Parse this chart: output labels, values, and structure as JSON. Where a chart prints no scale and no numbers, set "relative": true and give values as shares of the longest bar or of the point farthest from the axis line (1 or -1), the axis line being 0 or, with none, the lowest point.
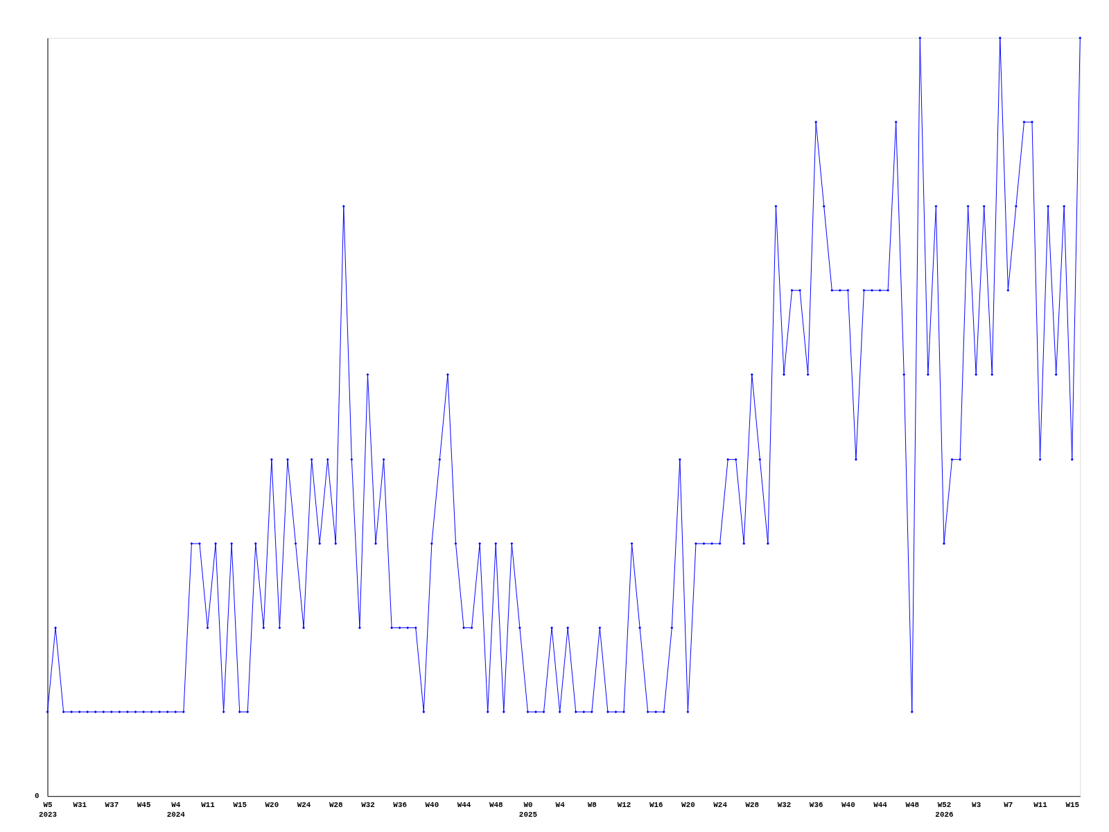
{
  "chart_data": {
    "type": "line",
    "relative": true,
    "color": "#0000ff",
    "marker": "diamond",
    "line_style": "solid",
    "grid": false,
    "annotations": [
      "0"
    ],
    "categories": [
      "W5\n2023",
      null,
      null,
      null,
      "W31",
      null,
      null,
      null,
      "W37",
      null,
      null,
      null,
      "W45",
      null,
      null,
      null,
      "W4\n2024",
      null,
      null,
      null,
      "W11",
      null,
      null,
      null,
      "W15",
      null,
      null,
      null,
      "W20",
      null,
      null,
      null,
      "W24",
      null,
      null,
      null,
      "W28",
      null,
      null,
      null,
      "W32",
      null,
      null,
      null,
      "W36",
      null,
      null,
      null,
      "W40",
      null,
      null,
      null,
      "W44",
      null,
      null,
      null,
      "W48",
      null,
      null,
      null,
      "W0\n2025",
      null,
      null,
      null,
      "W4",
      null,
      null,
      null,
      "W8",
      null,
      null,
      null,
      "W12",
      null,
      null,
      null,
      "W16",
      null,
      null,
      null,
      "W20",
      null,
      null,
      null,
      "W24",
      null,
      null,
      null,
      "W28",
      null,
      null,
      null,
      "W32",
      null,
      null,
      null,
      "W36",
      null,
      null,
      null,
      "W40",
      null,
      null,
      null,
      "W44",
      null,
      null,
      null,
      "W48",
      null,
      null,
      null,
      "W52\n2026",
      null,
      null,
      null,
      "W3",
      null,
      null,
      null,
      "W7",
      null,
      null,
      null,
      "W11",
      null,
      null,
      null,
      "W15",
      null
    ],
    "values": [
      0.111,
      0.222,
      0.111,
      0.111,
      0.111,
      0.111,
      0.111,
      0.111,
      0.111,
      0.111,
      0.111,
      0.111,
      0.111,
      0.111,
      0.111,
      0.111,
      0.111,
      0.111,
      0.333,
      0.333,
      0.222,
      0.333,
      0.111,
      0.333,
      0.111,
      0.111,
      0.333,
      0.222,
      0.444,
      0.222,
      0.444,
      0.333,
      0.222,
      0.444,
      0.333,
      0.444,
      0.333,
      0.778,
      0.444,
      0.222,
      0.556,
      0.333,
      0.444,
      0.222,
      0.222,
      0.222,
      0.222,
      0.111,
      0.333,
      0.444,
      0.556,
      0.333,
      0.222,
      0.222,
      0.333,
      0.111,
      0.333,
      0.111,
      0.333,
      0.222,
      0.111,
      0.111,
      0.111,
      0.222,
      0.111,
      0.222,
      0.111,
      0.111,
      0.111,
      0.222,
      0.111,
      0.111,
      0.111,
      0.333,
      0.222,
      0.111,
      0.111,
      0.111,
      0.222,
      0.444,
      0.111,
      0.333,
      0.333,
      0.333,
      0.333,
      0.444,
      0.444,
      0.333,
      0.556,
      0.444,
      0.333,
      0.778,
      0.556,
      0.667,
      0.667,
      0.556,
      0.889,
      0.778,
      0.667,
      0.667,
      0.667,
      0.444,
      0.667,
      0.667,
      0.667,
      0.667,
      0.889,
      0.556,
      0.111,
      1,
      0.556,
      0.778,
      0.333,
      0.444,
      0.444,
      0.778,
      0.556,
      0.778,
      0.556,
      1,
      0.667,
      0.778,
      0.889,
      0.889,
      0.444,
      0.778,
      0.556,
      0.778,
      0.444,
      1
    ]
  }
}
